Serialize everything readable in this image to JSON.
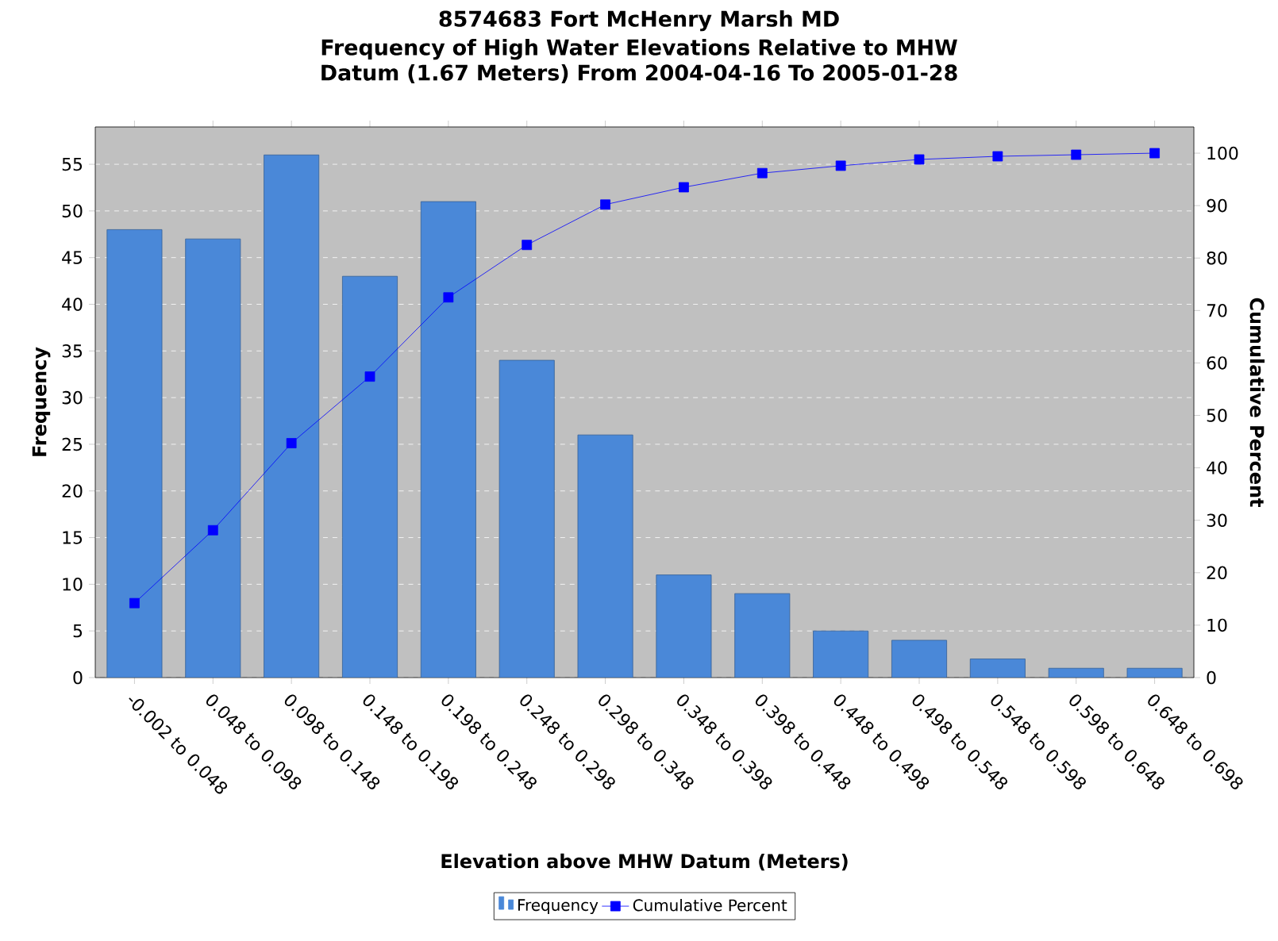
{
  "chart_data": {
    "type": "bar",
    "title": "8574683 Fort McHenry Marsh MD",
    "subtitle": "Frequency of High Water Elevations Relative to MHW Datum (1.67 Meters) From 2004-04-16 To 2005-01-28",
    "xlabel": "Elevation above MHW Datum  (Meters)",
    "ylabel": "Frequency",
    "y2label": "Cumulative Percent",
    "categories": [
      "-0.002 to 0.048",
      "0.048 to 0.098",
      "0.098 to 0.148",
      "0.148 to 0.198",
      "0.198 to 0.248",
      "0.248 to 0.298",
      "0.298 to 0.348",
      "0.348 to 0.398",
      "0.398 to 0.448",
      "0.448 to 0.498",
      "0.498 to 0.548",
      "0.548 to 0.598",
      "0.598 to 0.648",
      "0.648 to 0.698"
    ],
    "series": [
      {
        "name": "Frequency",
        "color": "#4a88d8",
        "values": [
          48,
          47,
          56,
          43,
          51,
          34,
          26,
          11,
          9,
          5,
          4,
          2,
          1,
          1
        ]
      },
      {
        "name": "Cumulative Percent",
        "type": "line",
        "axis": "y2",
        "color": "#0000ff",
        "values": [
          14.2,
          28.1,
          44.7,
          57.4,
          72.5,
          82.5,
          90.2,
          93.5,
          96.2,
          97.6,
          98.8,
          99.4,
          99.7,
          100
        ]
      }
    ],
    "ylim": [
      0,
      59
    ],
    "yticks": [
      0,
      5,
      10,
      15,
      20,
      25,
      30,
      35,
      40,
      45,
      50,
      55
    ],
    "y2lim": [
      0,
      105
    ],
    "y2ticks": [
      0,
      10,
      20,
      30,
      40,
      50,
      60,
      70,
      80,
      90,
      100
    ],
    "grid": "y",
    "legend": "bottom",
    "marker": "square"
  }
}
